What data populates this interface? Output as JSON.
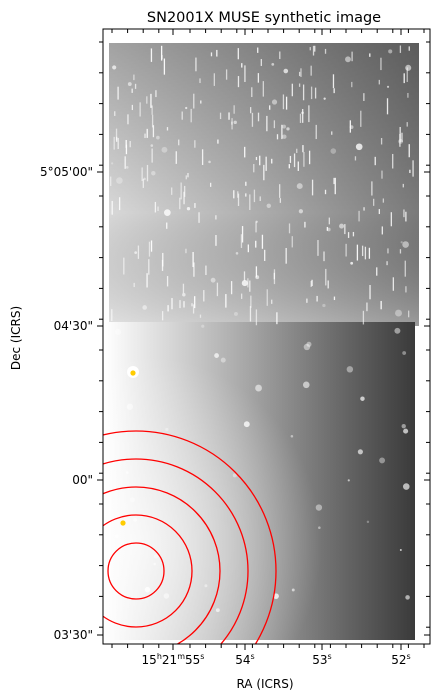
{
  "figure": {
    "title": "SN2001X MUSE synthetic image",
    "xlabel": "RA (ICRS)",
    "ylabel": "Dec (ICRS)",
    "colormap": "grayscale",
    "region_color": "#ff0000",
    "marker_color": "#ffcc00",
    "y_ticks": [
      "5°05'00\"",
      "04'30\"",
      "00\"",
      "03'30\""
    ],
    "x_ticks": [
      {
        "h": "15",
        "m": "21",
        "s": "55",
        "show_hm": true
      },
      {
        "s": "54",
        "show_hm": false
      },
      {
        "s": "53",
        "show_hm": false
      },
      {
        "s": "52",
        "show_hm": false
      }
    ],
    "region_count": 5,
    "marker_count": 2
  }
}
